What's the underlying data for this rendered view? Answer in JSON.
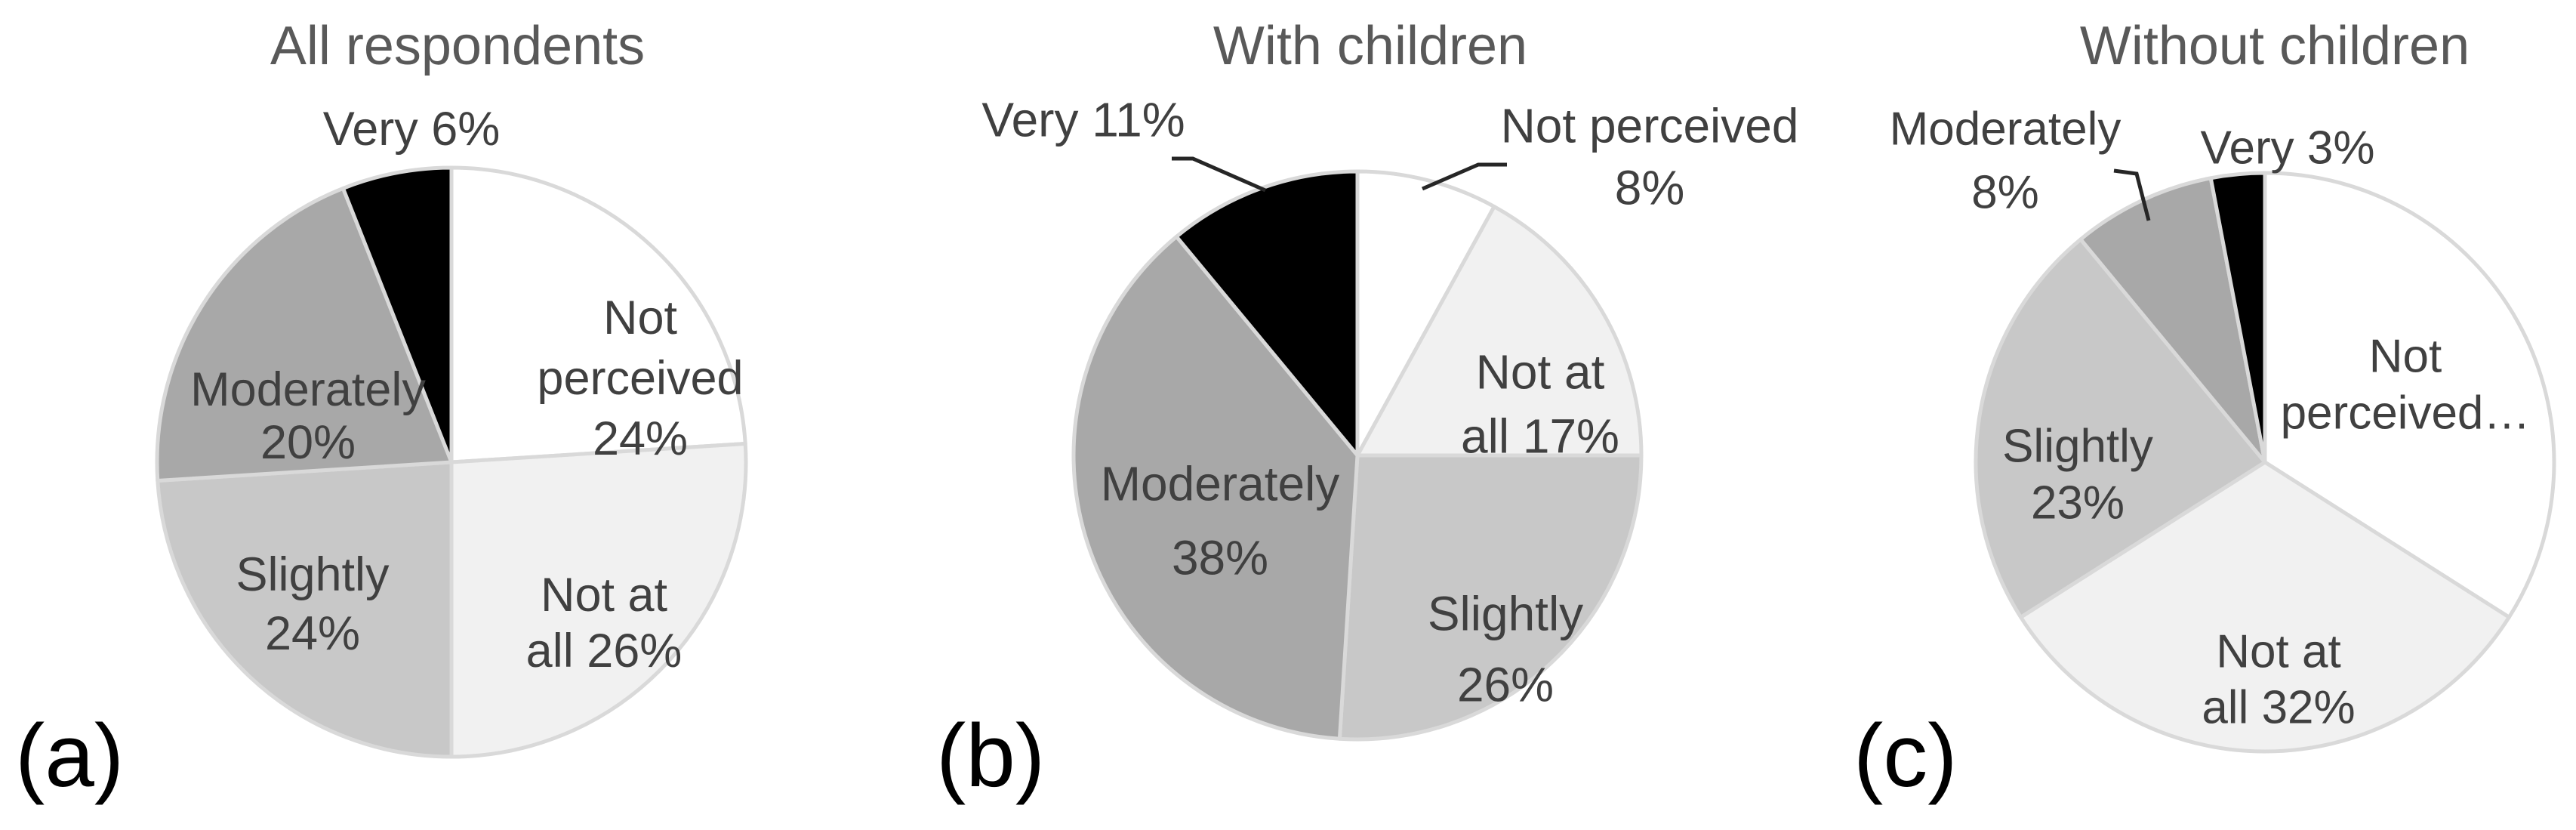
{
  "figure": {
    "background": "#ffffff",
    "label_text_color": "#404040",
    "title_text_color": "#595959",
    "slice_border_color": "#d9d9d9",
    "leader_line_color": "#262626",
    "panel_letter_color": "#000000"
  },
  "chart_data": [
    {
      "type": "pie",
      "panel_letter": "(a)",
      "title": "All respondents",
      "start_angle_deg": 0,
      "direction": "clockwise",
      "legend_position": "none",
      "slices": [
        {
          "label": "Not perceived",
          "value": 24,
          "pct_label": "24%",
          "display_lines": [
            "Not",
            "perceived",
            "24%"
          ],
          "label_position": "inside",
          "color": "#ffffff"
        },
        {
          "label": "Not at all",
          "value": 26,
          "pct_label": "26%",
          "display_lines": [
            "Not at",
            "all 26%"
          ],
          "label_position": "inside",
          "color": "#f1f1f1"
        },
        {
          "label": "Slightly",
          "value": 24,
          "pct_label": "24%",
          "display_lines": [
            "Slightly",
            "24%"
          ],
          "label_position": "inside",
          "color": "#c8c8c8"
        },
        {
          "label": "Moderately",
          "value": 20,
          "pct_label": "20%",
          "display_lines": [
            "Moderately",
            "20%"
          ],
          "label_position": "inside",
          "color": "#a8a8a8"
        },
        {
          "label": "Very",
          "value": 6,
          "pct_label": "6%",
          "display_lines": [
            "Very 6%"
          ],
          "label_position": "outside",
          "color": "#000000"
        }
      ]
    },
    {
      "type": "pie",
      "panel_letter": "(b)",
      "title": "With children",
      "start_angle_deg": 0,
      "direction": "clockwise",
      "legend_position": "none",
      "slices": [
        {
          "label": "Not perceived",
          "value": 8,
          "pct_label": "8%",
          "display_lines": [
            "Not perceived",
            "8%"
          ],
          "label_position": "outside",
          "has_leader_line": true,
          "color": "#ffffff"
        },
        {
          "label": "Not at all",
          "value": 17,
          "pct_label": "17%",
          "display_lines": [
            "Not at",
            "all 17%"
          ],
          "label_position": "inside",
          "color": "#f1f1f1"
        },
        {
          "label": "Slightly",
          "value": 26,
          "pct_label": "26%",
          "display_lines": [
            "Slightly",
            "26%"
          ],
          "label_position": "inside",
          "color": "#c8c8c8"
        },
        {
          "label": "Moderately",
          "value": 38,
          "pct_label": "38%",
          "display_lines": [
            "Moderately",
            "38%"
          ],
          "label_position": "inside",
          "color": "#a8a8a8"
        },
        {
          "label": "Very",
          "value": 11,
          "pct_label": "11%",
          "display_lines": [
            "Very 11%"
          ],
          "label_position": "outside",
          "has_leader_line": true,
          "color": "#000000"
        }
      ]
    },
    {
      "type": "pie",
      "panel_letter": "(c)",
      "title": "Without children",
      "start_angle_deg": 0,
      "direction": "clockwise",
      "legend_position": "none",
      "slices": [
        {
          "label": "Not perceived",
          "value": 34,
          "pct_label": "34%",
          "label_truncated": true,
          "display_lines": [
            "Not",
            "perceived…"
          ],
          "label_position": "inside",
          "color": "#ffffff"
        },
        {
          "label": "Not at all",
          "value": 32,
          "pct_label": "32%",
          "display_lines": [
            "Not at",
            "all 32%"
          ],
          "label_position": "inside",
          "color": "#f1f1f1"
        },
        {
          "label": "Slightly",
          "value": 23,
          "pct_label": "23%",
          "display_lines": [
            "Slightly",
            "23%"
          ],
          "label_position": "inside",
          "color": "#c8c8c8"
        },
        {
          "label": "Moderately",
          "value": 8,
          "pct_label": "8%",
          "display_lines": [
            "Moderately",
            "8%"
          ],
          "label_position": "outside",
          "has_leader_line": true,
          "color": "#a8a8a8"
        },
        {
          "label": "Very",
          "value": 3,
          "pct_label": "3%",
          "display_lines": [
            "Very 3%"
          ],
          "label_position": "outside",
          "color": "#000000"
        }
      ]
    }
  ]
}
